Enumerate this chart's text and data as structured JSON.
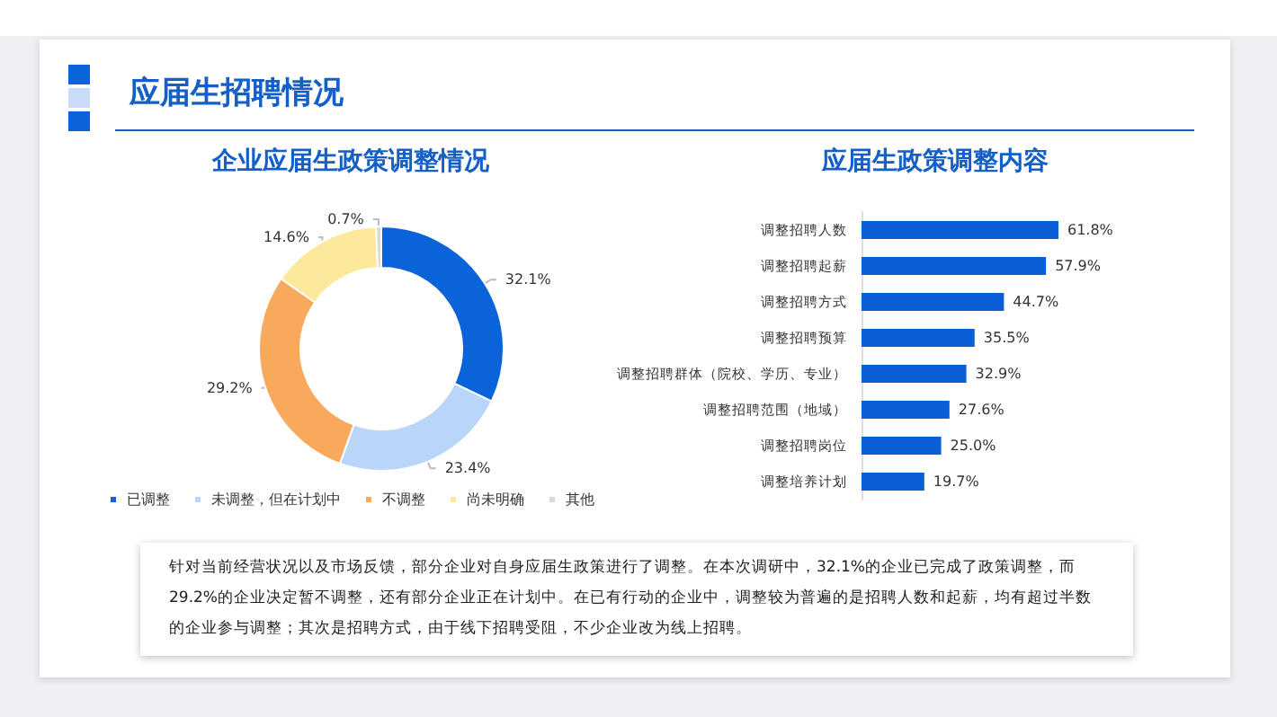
{
  "chart_data": [
    {
      "type": "donut",
      "title": "企业应届生政策调整情况",
      "annotations": [
        "应届生招聘情况"
      ],
      "categories": [
        "已调整",
        "未调整，但在计划中",
        "不调整",
        "尚未明确",
        "其他"
      ],
      "values": [
        32.1,
        23.4,
        29.2,
        14.6,
        0.7
      ],
      "colors": [
        "#0b63d9",
        "#b9d5fa",
        "#f9a95b",
        "#fce99c",
        "#d9d9d9"
      ],
      "value_labels": [
        "32.1%",
        "23.4%",
        "29.2%",
        "14.6%",
        "0.7%"
      ],
      "legend": "bottom"
    },
    {
      "type": "bar",
      "title": "应届生政策调整内容",
      "orientation": "horizontal",
      "categories": [
        "调整招聘人数",
        "调整招聘起薪",
        "调整招聘方式",
        "调整招聘预算",
        "调整招聘群体（院校、学历、专业）",
        "调整招聘范围（地域）",
        "调整招聘岗位",
        "调整培养计划"
      ],
      "values": [
        61.8,
        57.9,
        44.7,
        35.5,
        32.9,
        27.6,
        25.0,
        19.7
      ],
      "color": "#0b5fd6",
      "value_labels": [
        "61.8%",
        "57.9%",
        "44.7%",
        "35.5%",
        "32.9%",
        "27.6%",
        "25.0%",
        "19.7%"
      ],
      "annotations": [
        "针对当前经营状况以及市场反馈，部分企业对自身应届生政策进行了调整。在本次调研中，32.1%的企业已完成了政策调整，而29.2%的企业决定暂不调整，还有部分企业正在计划中。在已有行动的企业中，调整较为普遍的是招聘人数和起薪，均有超过半数的企业参与调整；其次是招聘方式，由于线下招聘受阻，不少企业改为线上招聘。"
      ]
    }
  ]
}
